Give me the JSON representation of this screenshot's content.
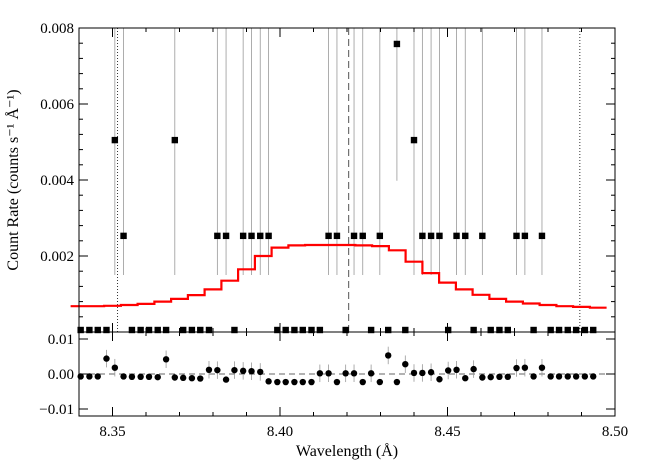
{
  "chart_data": [
    {
      "type": "scatter",
      "panel": "main",
      "xlabel": "",
      "ylabel": "Count Rate (counts s⁻¹ Å⁻¹)",
      "xlim": [
        8.34,
        8.5
      ],
      "ylim": [
        0.0,
        0.008
      ],
      "y_ticks": [
        0.002,
        0.004,
        0.006,
        0.008
      ],
      "y_tick_labels": [
        "0.002",
        "0.004",
        "0.006",
        "0.008"
      ],
      "vertical_lines": [
        {
          "x": 8.3515,
          "style": "dotted"
        },
        {
          "x": 8.4205,
          "style": "dashed"
        },
        {
          "x": 8.4895,
          "style": "dotted"
        }
      ],
      "series": [
        {
          "kind": "data-points",
          "marker": "square",
          "x": [
            8.3405,
            8.3431,
            8.3456,
            8.3482,
            8.3507,
            8.3533,
            8.3558,
            8.3584,
            8.3609,
            8.3635,
            8.366,
            8.3686,
            8.3711,
            8.3737,
            8.3762,
            8.3788,
            8.3813,
            8.3839,
            8.3864,
            8.389,
            8.3915,
            8.3941,
            8.3966,
            8.3992,
            8.4017,
            8.4043,
            8.4068,
            8.4094,
            8.4119,
            8.4145,
            8.417,
            8.4196,
            8.4221,
            8.4247,
            8.4272,
            8.4298,
            8.4323,
            8.4349,
            8.4374,
            8.44,
            8.4425,
            8.4451,
            8.4476,
            8.4502,
            8.4527,
            8.4553,
            8.4578,
            8.4604,
            8.4629,
            8.4655,
            8.468,
            8.4706,
            8.4731,
            8.4757,
            8.4782,
            8.4808,
            8.4833,
            8.4859,
            8.4884,
            8.491,
            8.4935
          ],
          "y": [
            0,
            0,
            0,
            0,
            0.00505,
            0.00253,
            0,
            0,
            0,
            0,
            0,
            0.00505,
            0,
            0,
            0,
            0,
            0.00253,
            0.00253,
            0,
            0.00253,
            0.00253,
            0.00253,
            0.00253,
            0,
            0,
            0,
            0,
            0,
            0,
            0.00253,
            0.00253,
            0,
            0.00253,
            0.00253,
            0,
            0.00253,
            0,
            0.00758,
            0,
            0.00505,
            0.00253,
            0.00253,
            0.00253,
            0,
            0.00253,
            0.00253,
            0,
            0.00253,
            0,
            0,
            0,
            0.00253,
            0.00253,
            0,
            0.00253,
            0,
            0,
            0,
            0,
            0,
            0
          ],
          "yerr_upper": [
            0.0105,
            0.0105,
            0.0105,
            0.0105,
            0.0105,
            0.0105,
            0.0105,
            0.0105,
            0.0105,
            0.0105,
            0.0105,
            0.0105,
            0.0105,
            0.0105,
            0.0105,
            0.0105,
            0.0105,
            0.0105,
            0.0105,
            0.0105,
            0.0105,
            0.0105,
            0.0105,
            0.0105,
            0.0105,
            0.0105,
            0.0105,
            0.0105,
            0.0105,
            0.0105,
            0.0105,
            0.0105,
            0.0105,
            0.0105,
            0.0105,
            0.0105,
            0.0105,
            0.0105,
            0.0105,
            0.0105,
            0.0105,
            0.0105,
            0.0105,
            0.0105,
            0.0105,
            0.0105,
            0.0105,
            0.0105,
            0.0105,
            0.0105,
            0.0105,
            0.0105,
            0.0105,
            0.0105,
            0.0105,
            0.0105,
            0.0105,
            0.0105,
            0.0105,
            0.0105,
            0.0105
          ]
        },
        {
          "kind": "model",
          "style": "step",
          "color": "#ff0000",
          "x": [
            8.34,
            8.345,
            8.35,
            8.355,
            8.36,
            8.365,
            8.37,
            8.375,
            8.38,
            8.385,
            8.39,
            8.395,
            8.4,
            8.405,
            8.41,
            8.415,
            8.42,
            8.425,
            8.43,
            8.435,
            8.44,
            8.445,
            8.45,
            8.455,
            8.46,
            8.465,
            8.47,
            8.475,
            8.48,
            8.485,
            8.49,
            8.495
          ],
          "y": [
            0.00068,
            0.00068,
            0.00069,
            0.00071,
            0.00074,
            0.0008,
            0.00087,
            0.00097,
            0.00112,
            0.00135,
            0.00165,
            0.002,
            0.00222,
            0.00228,
            0.00229,
            0.00229,
            0.00229,
            0.00228,
            0.00226,
            0.00215,
            0.00185,
            0.00155,
            0.0013,
            0.00112,
            0.00098,
            0.00087,
            0.0008,
            0.00075,
            0.00071,
            0.00068,
            0.00066,
            0.00064
          ]
        }
      ]
    },
    {
      "type": "scatter",
      "panel": "residuals",
      "xlabel": "Wavelength (Å)",
      "ylabel": "",
      "xlim": [
        8.34,
        8.5
      ],
      "ylim": [
        -0.012,
        0.012
      ],
      "x_ticks": [
        8.35,
        8.4,
        8.45,
        8.5
      ],
      "x_tick_labels": [
        "8.35",
        "8.40",
        "8.45",
        "8.50"
      ],
      "y_ticks": [
        -0.01,
        0.0,
        0.01
      ],
      "y_tick_labels": [
        "−0.01",
        "0.00",
        "0.01"
      ],
      "zero_line": "dashed",
      "series": [
        {
          "kind": "residuals",
          "marker": "circle",
          "x": [
            8.3405,
            8.3431,
            8.3456,
            8.3482,
            8.3507,
            8.3533,
            8.3558,
            8.3584,
            8.3609,
            8.3635,
            8.366,
            8.3686,
            8.3711,
            8.3737,
            8.3762,
            8.3788,
            8.3813,
            8.3839,
            8.3864,
            8.389,
            8.3915,
            8.3941,
            8.3966,
            8.3992,
            8.4017,
            8.4043,
            8.4068,
            8.4094,
            8.4119,
            8.4145,
            8.417,
            8.4196,
            8.4221,
            8.4247,
            8.4272,
            8.4298,
            8.4323,
            8.4349,
            8.4374,
            8.44,
            8.4425,
            8.4451,
            8.4476,
            8.4502,
            8.4527,
            8.4553,
            8.4578,
            8.4604,
            8.4629,
            8.4655,
            8.468,
            8.4706,
            8.4731,
            8.4757,
            8.4782,
            8.4808,
            8.4833,
            8.4859,
            8.4884,
            8.491,
            8.4935
          ],
          "y": [
            -0.0007,
            -0.0007,
            -0.0007,
            0.0044,
            0.0018,
            -0.0007,
            -0.0008,
            -0.0008,
            -0.0008,
            -0.0009,
            0.0042,
            -0.001,
            -0.0011,
            -0.0012,
            -0.0013,
            0.0012,
            0.0011,
            -0.0016,
            0.0011,
            0.0009,
            0.0008,
            0.0006,
            -0.0021,
            -0.0023,
            -0.0023,
            -0.0023,
            -0.0023,
            -0.0023,
            0.0002,
            0.0002,
            -0.0023,
            0.0002,
            0.0002,
            -0.0023,
            0.0002,
            -0.0023,
            0.0053,
            -0.0023,
            0.0028,
            0.0003,
            0.0003,
            0.0005,
            -0.0015,
            0.001,
            0.0012,
            -0.0012,
            0.0014,
            -0.001,
            -0.0009,
            -0.0008,
            -0.0008,
            0.0017,
            0.0018,
            -0.0007,
            0.0018,
            -0.0007,
            -0.0007,
            -0.0007,
            -0.0007,
            -0.0007,
            -0.0007
          ]
        }
      ]
    }
  ]
}
